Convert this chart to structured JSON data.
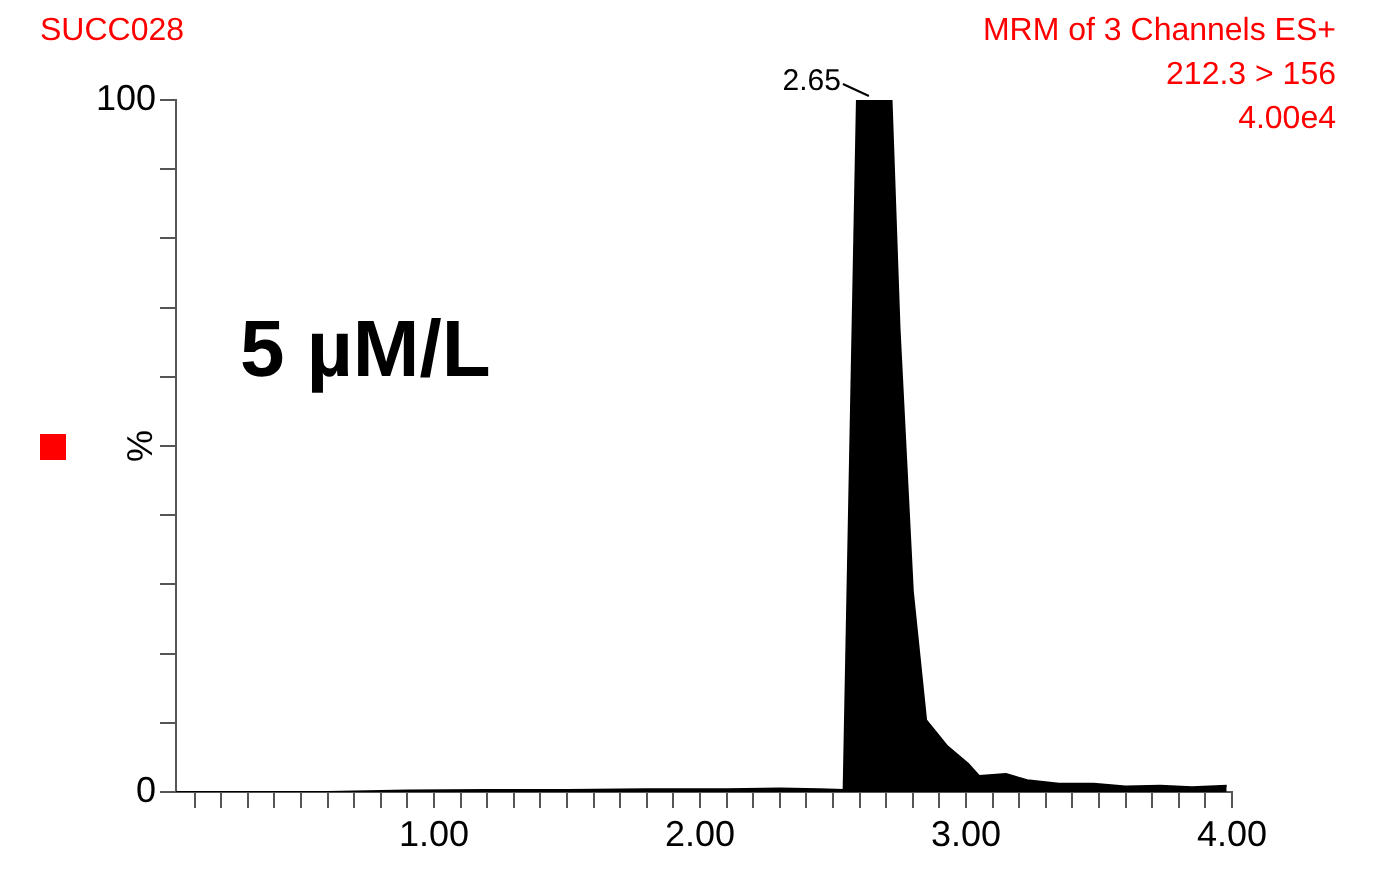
{
  "chart_data": {
    "type": "area",
    "title": "SUCC028",
    "ylabel": "%",
    "annotations": [
      "MRM of 3 Channels ES+",
      "212.3 > 156",
      "4.00e4",
      "5 µM/L",
      {
        "text": "2.65",
        "x": 2.65,
        "y": 100
      }
    ],
    "x": [
      0.03,
      0.3,
      0.6,
      0.9,
      1.2,
      1.5,
      1.8,
      2.1,
      2.3,
      2.45,
      2.54,
      2.59,
      2.72,
      2.75,
      2.8,
      2.85,
      2.93,
      3.01,
      3.05,
      3.15,
      3.23,
      3.35,
      3.48,
      3.6,
      3.73,
      3.85,
      3.98
    ],
    "series": [
      {
        "color": "#000000",
        "values": [
          0,
          0,
          0,
          0.2,
          0.3,
          0.3,
          0.4,
          0.4,
          0.5,
          0.4,
          0.3,
          100,
          100,
          67,
          29,
          10.4,
          6.6,
          4,
          2.3,
          2.6,
          1.7,
          1.2,
          1.2,
          0.8,
          0.9,
          0.7,
          0.9
        ]
      }
    ],
    "xlim": [
      0.03,
      4.0
    ],
    "xticks": [
      {
        "value": 0.1,
        "label": null
      },
      {
        "value": 0.2,
        "label": null
      },
      {
        "value": 0.3,
        "label": null
      },
      {
        "value": 0.4,
        "label": null
      },
      {
        "value": 0.5,
        "label": null
      },
      {
        "value": 0.6,
        "label": null
      },
      {
        "value": 0.7,
        "label": null
      },
      {
        "value": 0.8,
        "label": null
      },
      {
        "value": 0.9,
        "label": null
      },
      {
        "value": 1,
        "label": "1.00"
      },
      {
        "value": 1.1,
        "label": null
      },
      {
        "value": 1.2,
        "label": null
      },
      {
        "value": 1.3,
        "label": null
      },
      {
        "value": 1.4,
        "label": null
      },
      {
        "value": 1.5,
        "label": null
      },
      {
        "value": 1.6,
        "label": null
      },
      {
        "value": 1.7,
        "label": null
      },
      {
        "value": 1.8,
        "label": null
      },
      {
        "value": 1.9,
        "label": null
      },
      {
        "value": 2,
        "label": "2.00"
      },
      {
        "value": 2.1,
        "label": null
      },
      {
        "value": 2.2,
        "label": null
      },
      {
        "value": 2.3,
        "label": null
      },
      {
        "value": 2.4,
        "label": null
      },
      {
        "value": 2.5,
        "label": null
      },
      {
        "value": 2.6,
        "label": null
      },
      {
        "value": 2.7,
        "label": null
      },
      {
        "value": 2.8,
        "label": null
      },
      {
        "value": 2.9,
        "label": null
      },
      {
        "value": 3,
        "label": "3.00"
      },
      {
        "value": 3.1,
        "label": null
      },
      {
        "value": 3.2,
        "label": null
      },
      {
        "value": 3.3,
        "label": null
      },
      {
        "value": 3.4,
        "label": null
      },
      {
        "value": 3.5,
        "label": null
      },
      {
        "value": 3.6,
        "label": null
      },
      {
        "value": 3.7,
        "label": null
      },
      {
        "value": 3.8,
        "label": null
      },
      {
        "value": 3.9,
        "label": null
      },
      {
        "value": 4,
        "label": "4.00"
      }
    ],
    "ylim": [
      0,
      100
    ],
    "yticks": [
      0,
      {
        "value": 10,
        "label": null
      },
      {
        "value": 20,
        "label": null
      },
      {
        "value": 30,
        "label": null
      },
      {
        "value": 40,
        "label": null
      },
      {
        "value": 50,
        "label": null
      },
      {
        "value": 60,
        "label": null
      },
      {
        "value": 70,
        "label": null
      },
      {
        "value": 80,
        "label": null
      },
      {
        "value": 90,
        "label": null
      },
      100
    ],
    "grid": false,
    "legend": false,
    "marker": "none",
    "line_style": "solid"
  }
}
